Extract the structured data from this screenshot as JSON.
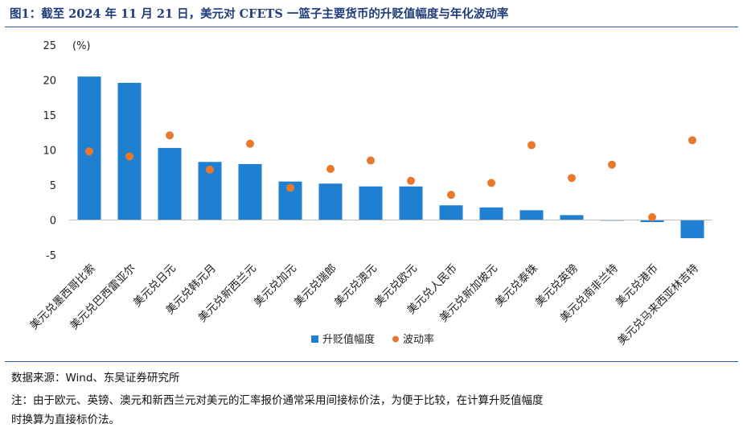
{
  "title": "图1：截至 2024 年 11 月 21 日，美元对 CFETS 一篮子主要货币的升贬值幅度与年化波动率",
  "chart_data": {
    "type": "bar",
    "unit_label": "(%)",
    "ylim": [
      -5,
      25
    ],
    "yticks": [
      -5,
      0,
      5,
      10,
      15,
      20,
      25
    ],
    "categories": [
      "美元兑墨西哥比索",
      "美元兑巴西雷亚尔",
      "美元兑日元",
      "美元兑韩元月",
      "美元兑新西兰元",
      "美元兑加元",
      "美元兑瑞郎",
      "美元兑澳元",
      "美元兑欧元",
      "美元兑人民币",
      "美元兑新加坡元",
      "美元兑泰铢",
      "美元兑英镑",
      "美元兑南非兰特",
      "美元兑港币",
      "美元兑马来西亚林吉特"
    ],
    "series": [
      {
        "name": "升贬值幅度",
        "kind": "bar",
        "color": "#1f7fd0",
        "values": [
          20.5,
          19.6,
          10.3,
          8.3,
          8.0,
          5.5,
          5.2,
          4.8,
          4.8,
          2.1,
          1.8,
          1.4,
          0.7,
          -0.1,
          -0.3,
          -2.6
        ]
      },
      {
        "name": "波动率",
        "kind": "scatter",
        "color": "#e8792c",
        "values": [
          9.8,
          9.1,
          12.1,
          7.2,
          10.9,
          4.6,
          7.3,
          8.5,
          5.6,
          3.6,
          5.3,
          10.7,
          6.0,
          7.9,
          0.4,
          11.4
        ]
      }
    ],
    "legend": "bottom-center",
    "grid": false
  },
  "footer": {
    "source": "数据来源：Wind、东吴证券研究所",
    "note_line1": "注：由于欧元、英镑、澳元和新西兰元对美元的汇率报价通常采用间接标价法，为便于比较，在计算升贬值幅度",
    "note_line2": "时换算为直接标价法。"
  }
}
